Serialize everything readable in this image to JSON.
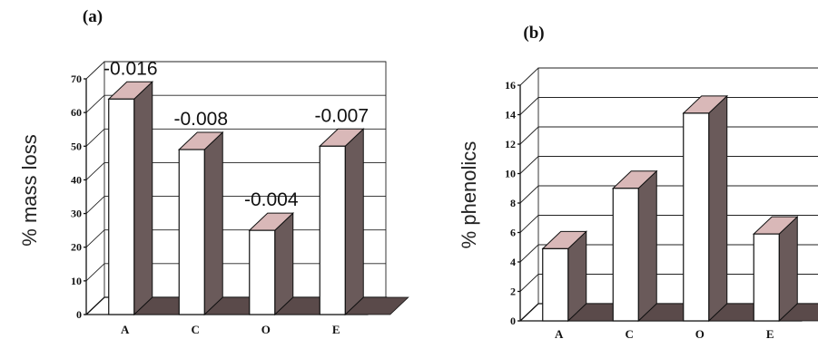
{
  "chart_data": [
    {
      "type": "bar",
      "panel": "(a)",
      "ylabel": "% mass loss",
      "categories": [
        "A",
        "C",
        "O",
        "E"
      ],
      "values": [
        64,
        49,
        25,
        50
      ],
      "data_labels": [
        "-0.016",
        "-0.008",
        "-0.004",
        "-0.007"
      ],
      "ylim": [
        0,
        70
      ],
      "yticks": [
        "0",
        "10",
        "20",
        "30",
        "40",
        "50",
        "60",
        "70"
      ],
      "grid": true,
      "style": "3d"
    },
    {
      "type": "bar",
      "panel": "(b)",
      "ylabel": "% phenolics",
      "categories": [
        "A",
        "C",
        "O",
        "E"
      ],
      "values": [
        4.9,
        9.0,
        14.1,
        5.9
      ],
      "ylim": [
        0,
        16
      ],
      "yticks": [
        "0",
        "2",
        "4",
        "6",
        "8",
        "10",
        "12",
        "14",
        "16"
      ],
      "grid": true,
      "style": "3d"
    }
  ]
}
